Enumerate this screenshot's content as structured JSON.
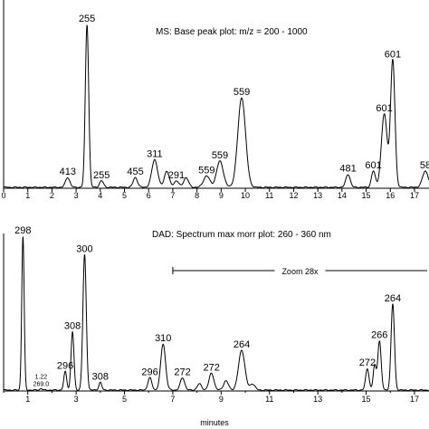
{
  "chart_data": [
    {
      "type": "line",
      "title": "MS: Base peak plot: m/z = 200 - 1000",
      "xlabel": "",
      "ylabel": "",
      "xlim": [
        0,
        17.6
      ],
      "ylim": [
        0,
        100
      ],
      "x_ticks": [
        0,
        1,
        2,
        3,
        4,
        5,
        6,
        7,
        8,
        9,
        10,
        11,
        12,
        13,
        14,
        15,
        16,
        17
      ],
      "peaks": [
        {
          "x": 2.65,
          "y": 6,
          "w": 0.09,
          "label": "413"
        },
        {
          "x": 3.45,
          "y": 100,
          "w": 0.07,
          "label": "255"
        },
        {
          "x": 4.05,
          "y": 4,
          "w": 0.08,
          "label": "255"
        },
        {
          "x": 5.45,
          "y": 6,
          "w": 0.09,
          "label": "455"
        },
        {
          "x": 6.25,
          "y": 17,
          "w": 0.12,
          "label": "311"
        },
        {
          "x": 6.75,
          "y": 10,
          "w": 0.1,
          "label": ""
        },
        {
          "x": 7.15,
          "y": 4,
          "w": 0.1,
          "label": "291"
        },
        {
          "x": 7.55,
          "y": 6,
          "w": 0.1,
          "label": ""
        },
        {
          "x": 8.4,
          "y": 7,
          "w": 0.13,
          "label": "559"
        },
        {
          "x": 8.95,
          "y": 16,
          "w": 0.14,
          "label": "559"
        },
        {
          "x": 9.85,
          "y": 55,
          "w": 0.16,
          "label": "559"
        },
        {
          "x": 14.25,
          "y": 8,
          "w": 0.09,
          "label": "481"
        },
        {
          "x": 15.3,
          "y": 10,
          "w": 0.08,
          "label": "601"
        },
        {
          "x": 15.75,
          "y": 45,
          "w": 0.12,
          "label": "601"
        },
        {
          "x": 16.1,
          "y": 78,
          "w": 0.09,
          "label": "601"
        },
        {
          "x": 17.45,
          "y": 10,
          "w": 0.12,
          "label": "58"
        }
      ]
    },
    {
      "type": "line",
      "title": "DAD: Spectrum max morr plot: 260 - 360 nm",
      "xlabel": "minutes",
      "ylabel": "",
      "xlim": [
        0,
        17.6
      ],
      "ylim": [
        0,
        100
      ],
      "x_ticks": [
        1,
        3,
        5,
        7,
        9,
        11,
        13,
        15,
        17
      ],
      "annotation": "Zoom 28x",
      "annotation_range": [
        7,
        17.6
      ],
      "peaks": [
        {
          "x": 0.8,
          "y": 100,
          "w": 0.05,
          "label": "298"
        },
        {
          "x": 1.55,
          "y": 1,
          "w": 0.05,
          "label": "1.22\n269.0"
        },
        {
          "x": 2.55,
          "y": 12,
          "w": 0.06,
          "label": "296"
        },
        {
          "x": 2.85,
          "y": 38,
          "w": 0.06,
          "label": "308"
        },
        {
          "x": 3.35,
          "y": 88,
          "w": 0.07,
          "label": "300"
        },
        {
          "x": 4.0,
          "y": 5,
          "w": 0.06,
          "label": "308"
        },
        {
          "x": 6.05,
          "y": 8,
          "w": 0.08,
          "label": "296"
        },
        {
          "x": 6.6,
          "y": 30,
          "w": 0.1,
          "label": "310"
        },
        {
          "x": 7.4,
          "y": 8,
          "w": 0.09,
          "label": "272"
        },
        {
          "x": 8.1,
          "y": 4,
          "w": 0.09,
          "label": ""
        },
        {
          "x": 8.6,
          "y": 11,
          "w": 0.1,
          "label": "272"
        },
        {
          "x": 9.2,
          "y": 6,
          "w": 0.1,
          "label": ""
        },
        {
          "x": 9.85,
          "y": 26,
          "w": 0.13,
          "label": "264"
        },
        {
          "x": 10.3,
          "y": 4,
          "w": 0.1,
          "label": ""
        },
        {
          "x": 15.05,
          "y": 14,
          "w": 0.07,
          "label": "272"
        },
        {
          "x": 15.35,
          "y": 16,
          "w": 0.06,
          "label": ""
        },
        {
          "x": 15.55,
          "y": 32,
          "w": 0.07,
          "label": "266"
        },
        {
          "x": 16.1,
          "y": 56,
          "w": 0.07,
          "label": "264"
        }
      ]
    }
  ]
}
